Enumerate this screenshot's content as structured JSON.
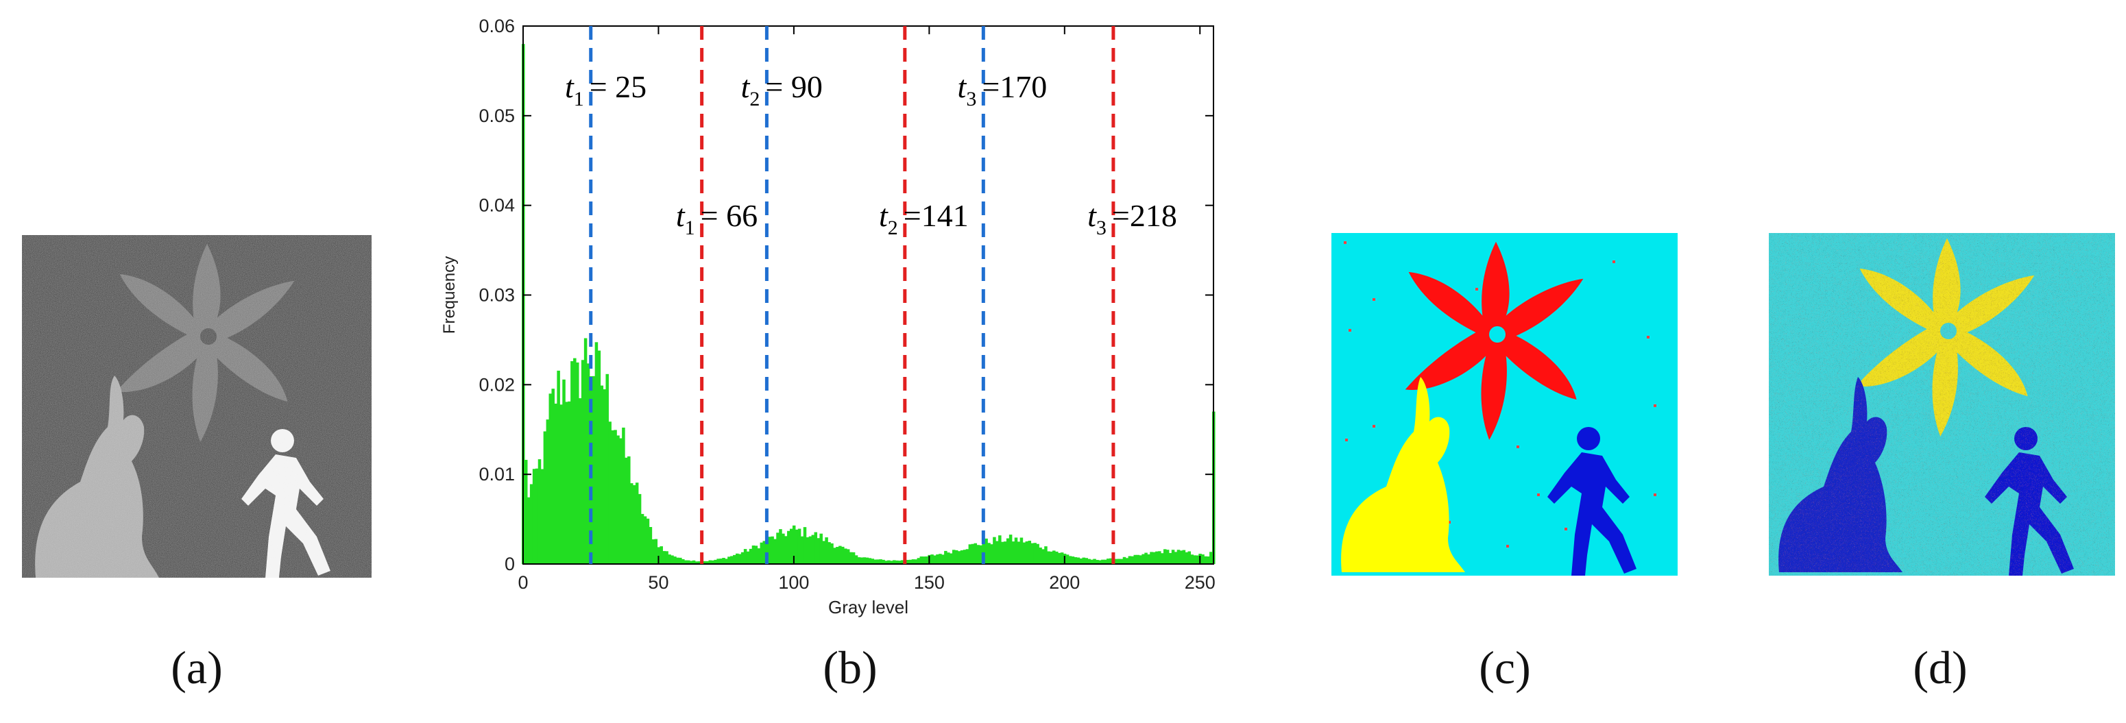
{
  "captions": {
    "a": "(a)",
    "b": "(b)",
    "c": "(c)",
    "d": "(d)"
  },
  "chart_data": {
    "type": "bar",
    "xlabel": "Gray level",
    "ylabel": "Frequency",
    "xlim": [
      0,
      255
    ],
    "ylim": [
      0,
      0.06
    ],
    "xticks": [
      0,
      50,
      100,
      150,
      200,
      250
    ],
    "yticks": [
      0,
      0.01,
      0.02,
      0.03,
      0.04,
      0.05,
      0.06
    ],
    "ytick_labels": [
      "0",
      "0.01",
      "0.02",
      "0.03",
      "0.04",
      "0.05",
      "0.06"
    ],
    "bar_color": "#22dd22",
    "histogram_profile": [
      [
        0,
        0.058
      ],
      [
        1,
        0.011
      ],
      [
        2,
        0.008
      ],
      [
        4,
        0.009
      ],
      [
        6,
        0.011
      ],
      [
        8,
        0.013
      ],
      [
        10,
        0.017
      ],
      [
        12,
        0.019
      ],
      [
        14,
        0.02
      ],
      [
        16,
        0.02
      ],
      [
        18,
        0.0205
      ],
      [
        20,
        0.02
      ],
      [
        22,
        0.023
      ],
      [
        24,
        0.0235
      ],
      [
        26,
        0.022
      ],
      [
        28,
        0.021
      ],
      [
        30,
        0.02
      ],
      [
        32,
        0.018
      ],
      [
        34,
        0.016
      ],
      [
        36,
        0.014
      ],
      [
        38,
        0.012
      ],
      [
        40,
        0.01
      ],
      [
        42,
        0.008
      ],
      [
        44,
        0.006
      ],
      [
        46,
        0.0045
      ],
      [
        48,
        0.0032
      ],
      [
        50,
        0.0022
      ],
      [
        52,
        0.0015
      ],
      [
        55,
        0.001
      ],
      [
        58,
        0.0006
      ],
      [
        62,
        0.0004
      ],
      [
        66,
        0.0003
      ],
      [
        70,
        0.0004
      ],
      [
        75,
        0.0007
      ],
      [
        80,
        0.0012
      ],
      [
        85,
        0.0018
      ],
      [
        90,
        0.0026
      ],
      [
        95,
        0.0033
      ],
      [
        100,
        0.0038
      ],
      [
        105,
        0.0035
      ],
      [
        110,
        0.003
      ],
      [
        115,
        0.0022
      ],
      [
        120,
        0.0014
      ],
      [
        125,
        0.0008
      ],
      [
        130,
        0.0005
      ],
      [
        135,
        0.0004
      ],
      [
        140,
        0.0004
      ],
      [
        145,
        0.0006
      ],
      [
        150,
        0.0009
      ],
      [
        155,
        0.0012
      ],
      [
        160,
        0.0016
      ],
      [
        165,
        0.002
      ],
      [
        170,
        0.0024
      ],
      [
        175,
        0.0027
      ],
      [
        180,
        0.0028
      ],
      [
        185,
        0.0026
      ],
      [
        190,
        0.0021
      ],
      [
        195,
        0.0016
      ],
      [
        200,
        0.0011
      ],
      [
        205,
        0.0007
      ],
      [
        210,
        0.0005
      ],
      [
        215,
        0.0005
      ],
      [
        220,
        0.0006
      ],
      [
        225,
        0.0008
      ],
      [
        230,
        0.0011
      ],
      [
        235,
        0.0014
      ],
      [
        240,
        0.0015
      ],
      [
        245,
        0.0013
      ],
      [
        250,
        0.001
      ],
      [
        253,
        0.0009
      ],
      [
        254,
        0.0012
      ],
      [
        255,
        0.017
      ]
    ],
    "threshold_lines": [
      {
        "value": 25,
        "color": "#1f6fd1",
        "sub": "1",
        "label": "= 25",
        "row": 1
      },
      {
        "value": 90,
        "color": "#1f6fd1",
        "sub": "2",
        "label": "= 90",
        "row": 1
      },
      {
        "value": 170,
        "color": "#1f6fd1",
        "sub": "3",
        "label": "=170",
        "row": 1
      },
      {
        "value": 66,
        "color": "#e22020",
        "sub": "1",
        "label": "= 66",
        "row": 2
      },
      {
        "value": 141,
        "color": "#e22020",
        "sub": "2",
        "label": "=141",
        "row": 2
      },
      {
        "value": 218,
        "color": "#e22020",
        "sub": "3",
        "label": "=218",
        "row": 2
      }
    ]
  },
  "image_colors": {
    "a": {
      "background": "#1b1b1b",
      "flower": "#6e6e6e",
      "rabbit": "#a8a8a8",
      "person": "#f2f2f2"
    },
    "c": {
      "background": "#00e8ee",
      "flower": "#ff1010",
      "rabbit": "#ffff00",
      "person": "#0a14d8"
    },
    "d": {
      "background": "#3fd3d8",
      "flower": "#f0e020",
      "rabbit": "#1428c8",
      "person": "#0a18d0"
    }
  }
}
